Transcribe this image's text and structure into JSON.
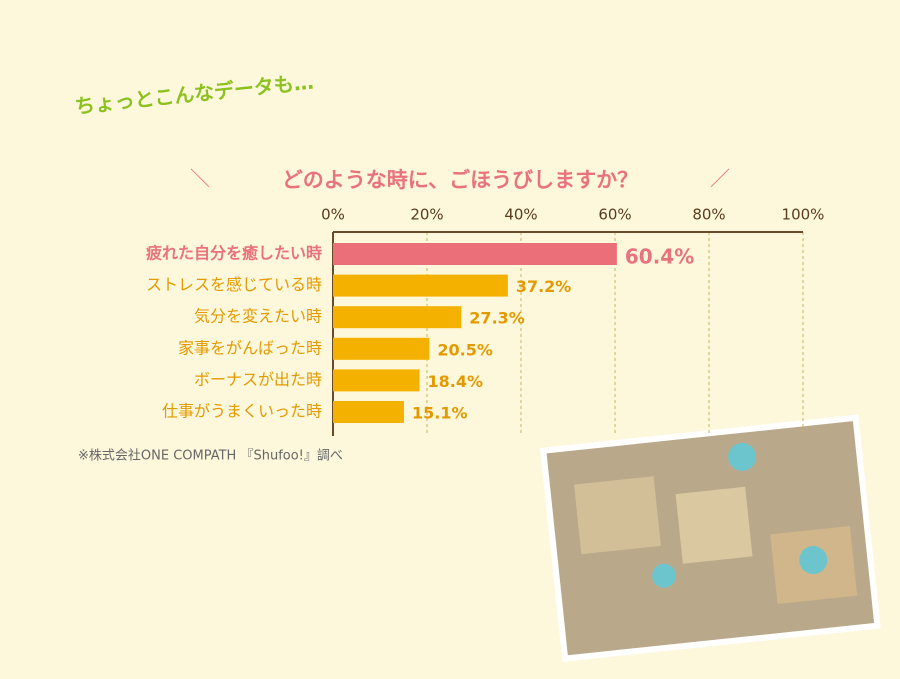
{
  "chart_data": {
    "type": "bar",
    "orientation": "horizontal",
    "annotation": "ちょっとこんなデータも…",
    "title": "どのような時に、ごほうびしますか？",
    "categories": [
      "疲れた自分を癒したい時",
      "ストレスを感じている時",
      "気分を変えたい時",
      "家事をがんばった時",
      "ボーナスが出た時",
      "仕事がうまくいった時"
    ],
    "values": [
      60.4,
      37.2,
      27.3,
      20.5,
      18.4,
      15.1
    ],
    "value_labels": [
      "60.4%",
      "37.2%",
      "27.3%",
      "20.5%",
      "18.4%",
      "15.1%"
    ],
    "colors": [
      "#ea6f79",
      "#f5b100",
      "#f5b100",
      "#f5b100",
      "#f5b100",
      "#f5b100"
    ],
    "xlim": [
      0,
      100
    ],
    "xticks": [
      {
        "value": 0,
        "label": "0%"
      },
      {
        "value": 20,
        "label": "20%"
      },
      {
        "value": 40,
        "label": "40%"
      },
      {
        "value": 60,
        "label": "60%"
      },
      {
        "value": 80,
        "label": "80%"
      },
      {
        "value": 100,
        "label": "100%"
      }
    ],
    "grid": true,
    "source": "※株式会社ONE COMPATH 『Shufoo!』調べ"
  }
}
